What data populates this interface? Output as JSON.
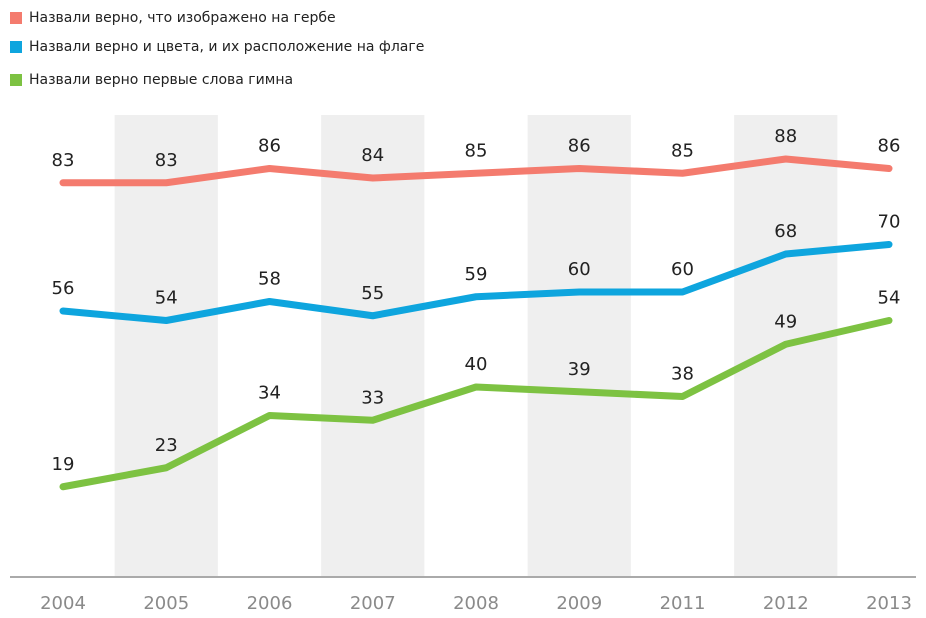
{
  "chart_data": {
    "type": "line",
    "categories": [
      "2004",
      "2005",
      "2006",
      "2007",
      "2008",
      "2009",
      "2011",
      "2012",
      "2013"
    ],
    "series": [
      {
        "name": "Назвали верно, что изображено на гербе",
        "color": "#f47b6e",
        "values": [
          83,
          83,
          86,
          84,
          85,
          86,
          85,
          88,
          86
        ]
      },
      {
        "name": "Назвали верно и цвета, и их расположение на флаге",
        "color": "#0ea5de",
        "values": [
          56,
          54,
          58,
          55,
          59,
          60,
          60,
          68,
          70
        ]
      },
      {
        "name": "Назвали верно первые слова гимна",
        "color": "#7dc242",
        "values": [
          19,
          23,
          34,
          33,
          40,
          39,
          38,
          49,
          54
        ]
      }
    ],
    "ylim": [
      0,
      100
    ],
    "legend": "top-left"
  }
}
